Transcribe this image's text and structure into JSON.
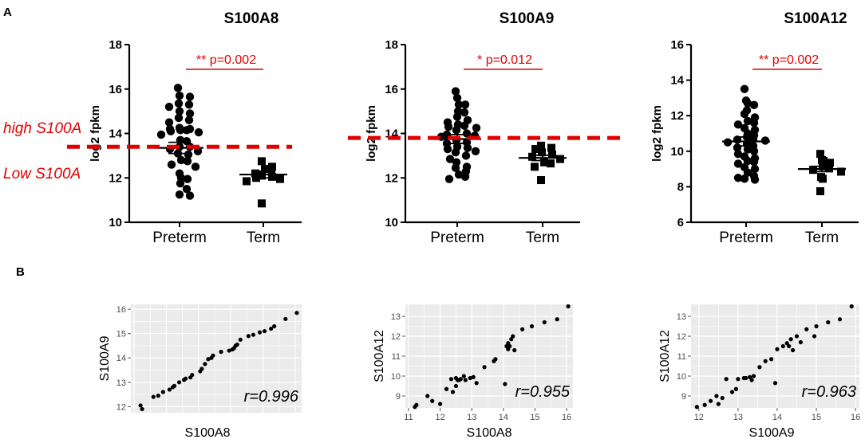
{
  "panel_labels": {
    "a": "A",
    "b": "B"
  },
  "annotation": {
    "high_label": "high S100A",
    "low_label": "Low S100A",
    "line_color": "#e00000"
  },
  "colors": {
    "significance": "#e00000",
    "points": "#000000",
    "scatter_bg": "#ebebeb",
    "grid": "#ffffff"
  },
  "chart_data": [
    {
      "type": "scatter",
      "subtype": "dot-plot",
      "title": "S100A8",
      "ylabel": "log2 fpkm",
      "xlabel": "",
      "ylim": [
        10,
        18
      ],
      "yticks": [
        "10",
        "12",
        "14",
        "16",
        "18"
      ],
      "categories": [
        "Preterm",
        "Term"
      ],
      "groups": [
        {
          "name": "Preterm",
          "marker": "circle",
          "mean": 13.35,
          "sem": 0.25,
          "values": [
            16.05,
            15.7,
            15.65,
            15.35,
            15.3,
            15.2,
            15.0,
            14.9,
            14.7,
            14.6,
            14.5,
            14.25,
            14.2,
            14.2,
            14.15,
            14.15,
            14.1,
            14.05,
            13.95,
            13.7,
            13.65,
            13.4,
            13.4,
            13.3,
            13.2,
            13.1,
            13.05,
            12.8,
            12.75,
            12.6,
            12.5,
            12.2,
            12.0,
            11.95,
            11.75,
            11.5,
            11.25,
            11.2
          ]
        },
        {
          "name": "Term",
          "marker": "square",
          "mean": 12.15,
          "sem": 0.15,
          "values": [
            12.75,
            12.5,
            12.4,
            12.4,
            12.2,
            12.1,
            12.05,
            12.0,
            11.95,
            11.85,
            10.85
          ]
        }
      ],
      "significance": {
        "text": "** p=0.002",
        "from": "Preterm",
        "to": "Term"
      },
      "threshold": {
        "y": 13.4,
        "style": "dashed"
      }
    },
    {
      "type": "scatter",
      "subtype": "dot-plot",
      "title": "S100A9",
      "ylabel": "log2 fpkm",
      "xlabel": "",
      "ylim": [
        10,
        18
      ],
      "yticks": [
        "10",
        "12",
        "14",
        "16",
        "18"
      ],
      "categories": [
        "Preterm",
        "Term"
      ],
      "groups": [
        {
          "name": "Preterm",
          "marker": "circle",
          "mean": 13.75,
          "sem": 0.2,
          "values": [
            15.9,
            15.6,
            15.3,
            15.3,
            15.0,
            14.95,
            14.75,
            14.6,
            14.5,
            14.4,
            14.35,
            14.3,
            14.25,
            14.15,
            14.0,
            13.95,
            13.9,
            13.85,
            13.7,
            13.6,
            13.55,
            13.4,
            13.35,
            13.3,
            13.2,
            13.15,
            13.0,
            12.85,
            12.7,
            12.5,
            12.45,
            12.3,
            12.15,
            12.05,
            11.95
          ]
        },
        {
          "name": "Term",
          "marker": "square",
          "mean": 12.9,
          "sem": 0.12,
          "values": [
            13.45,
            13.35,
            13.3,
            13.15,
            13.05,
            12.95,
            12.85,
            12.7,
            12.65,
            12.5,
            11.9
          ]
        }
      ],
      "significance": {
        "text": "* p=0.012",
        "from": "Preterm",
        "to": "Term"
      },
      "threshold": {
        "y": 13.8,
        "style": "dashed"
      }
    },
    {
      "type": "scatter",
      "subtype": "dot-plot",
      "title": "S100A12",
      "ylabel": "log2 fpkm",
      "xlabel": "",
      "ylim": [
        6,
        16
      ],
      "yticks": [
        "6",
        "8",
        "10",
        "12",
        "14",
        "16"
      ],
      "categories": [
        "Preterm",
        "Term"
      ],
      "groups": [
        {
          "name": "Preterm",
          "marker": "circle",
          "mean": 10.55,
          "sem": 0.25,
          "values": [
            13.5,
            12.85,
            12.7,
            12.6,
            12.3,
            12.1,
            11.9,
            11.7,
            11.6,
            11.5,
            11.3,
            11.2,
            11.0,
            10.9,
            10.8,
            10.7,
            10.65,
            10.6,
            10.5,
            10.4,
            10.3,
            10.2,
            10.1,
            10.0,
            9.85,
            9.7,
            9.6,
            9.45,
            9.4,
            9.3,
            9.1,
            9.0,
            8.8,
            8.6,
            8.5,
            8.45,
            8.4
          ]
        },
        {
          "name": "Term",
          "marker": "square",
          "mean": 9.0,
          "sem": 0.15,
          "values": [
            9.85,
            9.5,
            9.45,
            9.35,
            9.15,
            9.05,
            8.95,
            8.85,
            8.55,
            8.45,
            7.75
          ]
        }
      ],
      "significance": {
        "text": "** p=0.002",
        "from": "Preterm",
        "to": "Term"
      }
    },
    {
      "type": "scatter",
      "xlabel": "S100A8",
      "ylabel": "S100A9",
      "xlim": [
        10.9,
        16.2
      ],
      "ylim": [
        11.75,
        16.2
      ],
      "xticks": [],
      "yticks": [
        "12",
        "13",
        "14",
        "15",
        "16"
      ],
      "annotation": "r=0.996",
      "x": [
        11.2,
        11.25,
        11.6,
        11.75,
        11.9,
        12.1,
        12.2,
        12.25,
        12.4,
        12.55,
        12.6,
        12.75,
        12.8,
        13.05,
        13.1,
        13.2,
        13.3,
        13.4,
        13.45,
        13.7,
        13.95,
        14.05,
        14.1,
        14.15,
        14.2,
        14.3,
        14.55,
        14.7,
        14.9,
        15.05,
        15.25,
        15.35,
        15.7,
        16.05
      ],
      "y": [
        12.05,
        11.9,
        12.4,
        12.45,
        12.6,
        12.7,
        12.8,
        12.85,
        13.0,
        13.1,
        13.15,
        13.2,
        13.3,
        13.45,
        13.55,
        13.75,
        13.95,
        14.0,
        14.1,
        14.25,
        14.3,
        14.35,
        14.4,
        14.5,
        14.55,
        14.75,
        14.9,
        14.95,
        15.05,
        15.1,
        15.2,
        15.3,
        15.6,
        15.85
      ]
    },
    {
      "type": "scatter",
      "xlabel": "S100A8",
      "ylabel": "S100A12",
      "xlim": [
        10.9,
        16.2
      ],
      "ylim": [
        8.4,
        13.6
      ],
      "xticks": [
        "11",
        "12",
        "13",
        "14",
        "15",
        "16"
      ],
      "yticks": [
        "9",
        "10",
        "11",
        "12",
        "13"
      ],
      "annotation": "r=0.955",
      "x": [
        11.2,
        11.25,
        11.6,
        11.75,
        12.0,
        12.2,
        12.35,
        12.4,
        12.5,
        12.5,
        12.55,
        12.6,
        12.65,
        12.75,
        12.8,
        12.95,
        13.05,
        13.15,
        13.4,
        13.7,
        13.75,
        14.05,
        14.1,
        14.15,
        14.15,
        14.2,
        14.25,
        14.3,
        14.35,
        14.6,
        14.9,
        15.3,
        15.7,
        16.05
      ],
      "y": [
        8.45,
        8.55,
        9.0,
        8.75,
        8.6,
        9.35,
        9.85,
        9.2,
        9.5,
        9.9,
        9.8,
        9.8,
        9.85,
        10.0,
        9.8,
        9.9,
        9.95,
        9.65,
        10.45,
        10.75,
        10.85,
        9.6,
        11.5,
        11.35,
        11.65,
        11.5,
        11.85,
        12.0,
        11.3,
        12.35,
        12.5,
        12.7,
        12.85,
        13.5
      ]
    },
    {
      "type": "scatter",
      "xlabel": "S100A9",
      "ylabel": "S100A12",
      "xlim": [
        11.8,
        16.1
      ],
      "ylim": [
        8.4,
        13.6
      ],
      "xticks": [
        "12",
        "13",
        "14",
        "15",
        "16"
      ],
      "yticks": [
        "9",
        "10",
        "11",
        "12",
        "13"
      ],
      "annotation": "r=0.963",
      "x": [
        11.95,
        12.15,
        12.3,
        12.45,
        12.5,
        12.6,
        12.7,
        12.85,
        12.95,
        13.0,
        13.15,
        13.2,
        13.3,
        13.35,
        13.4,
        13.55,
        13.7,
        13.85,
        13.95,
        14.0,
        14.15,
        14.25,
        14.3,
        14.35,
        14.4,
        14.5,
        14.6,
        14.75,
        14.95,
        15.0,
        15.3,
        15.6,
        15.9
      ],
      "y": [
        8.45,
        8.55,
        8.75,
        9.0,
        8.6,
        8.9,
        9.85,
        9.2,
        9.35,
        9.85,
        9.9,
        9.9,
        9.95,
        9.8,
        10.0,
        10.45,
        10.75,
        10.85,
        9.65,
        11.35,
        11.5,
        11.65,
        11.5,
        11.85,
        11.3,
        12.0,
        11.7,
        12.35,
        12.0,
        12.5,
        12.7,
        12.85,
        13.5
      ]
    }
  ]
}
